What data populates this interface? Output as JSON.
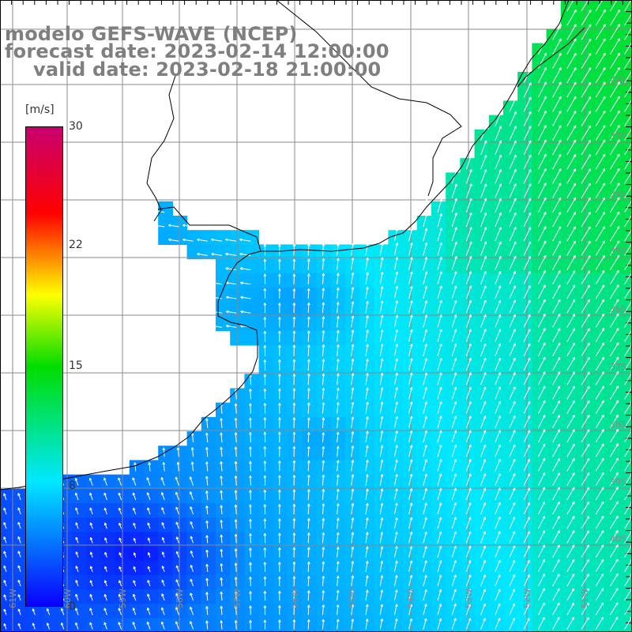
{
  "title": {
    "line1": "modelo GEFS-WAVE (NCEP)",
    "line2": "forecast date: 2023-02-14 12:00:00",
    "line3": "valid date: 2023-02-18 21:00:00"
  },
  "colorbar": {
    "unit": "[m/s]",
    "tick_labels": [
      "30",
      "22",
      "15",
      "8",
      "0"
    ],
    "tick_values": [
      30,
      22,
      15,
      8,
      0
    ],
    "range": [
      0,
      30
    ],
    "colors": [
      "#0a00ff",
      "#00e8ff",
      "#00dd00",
      "#ffff00",
      "#ff0000",
      "#c8006e"
    ]
  },
  "map": {
    "variable": "wind speed and direction arrows",
    "longitude_labels": [
      "61W",
      "60W",
      "59W",
      "58W",
      "57W",
      "56W",
      "55W",
      "54W",
      "53W",
      "52W",
      "51W"
    ],
    "latitude_labels": [
      "32S",
      "33S",
      "34S",
      "35S",
      "36S",
      "37S",
      "38S",
      "39S",
      "40S"
    ],
    "land_color": "#ffffff",
    "grid_color": "#888888",
    "coast_color": "#000000"
  }
}
